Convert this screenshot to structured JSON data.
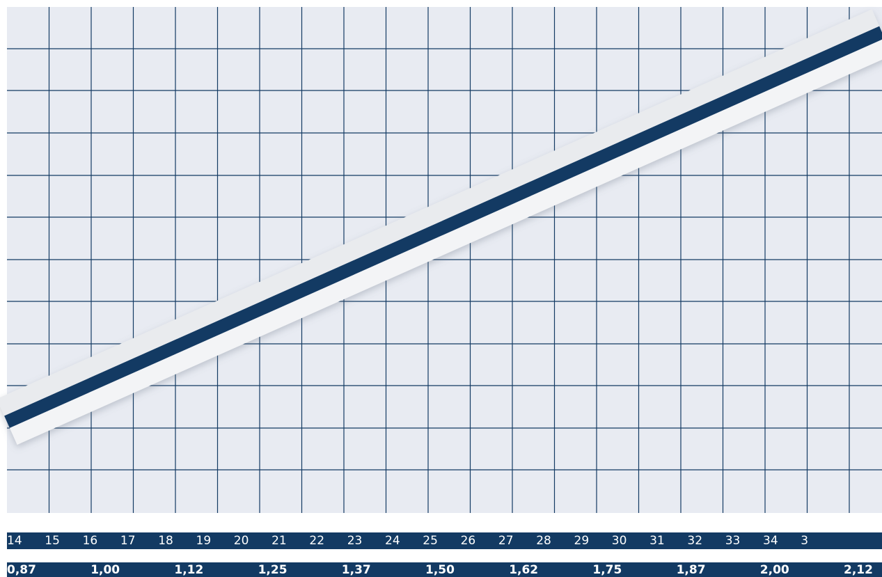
{
  "colors": {
    "background": "#e8ebf2",
    "grid": "#133a63",
    "line": "#133a63",
    "band": "#f2f3f5",
    "scale_bar": "#133a63",
    "scale_text": "#ffffff"
  },
  "chart_data": {
    "type": "line",
    "title": "",
    "xlabel": "",
    "ylabel": "",
    "grid": true,
    "legend": "none",
    "x_scale_top": {
      "ticks": [
        "14",
        "15",
        "16",
        "17",
        "18",
        "19",
        "20",
        "21",
        "22",
        "23",
        "24",
        "25",
        "26",
        "27",
        "28",
        "29",
        "30",
        "31",
        "32",
        "33",
        "34",
        "3"
      ]
    },
    "x_scale_bottom": {
      "ticks": [
        "0,87",
        "1,00",
        "1,12",
        "1,25",
        "1,37",
        "1,50",
        "1,62",
        "1,75",
        "1,87",
        "2,00",
        "2,12"
      ]
    },
    "series": [
      {
        "x": [
          14,
          35
        ],
        "y_fraction": [
          0.18,
          0.95
        ]
      }
    ]
  }
}
